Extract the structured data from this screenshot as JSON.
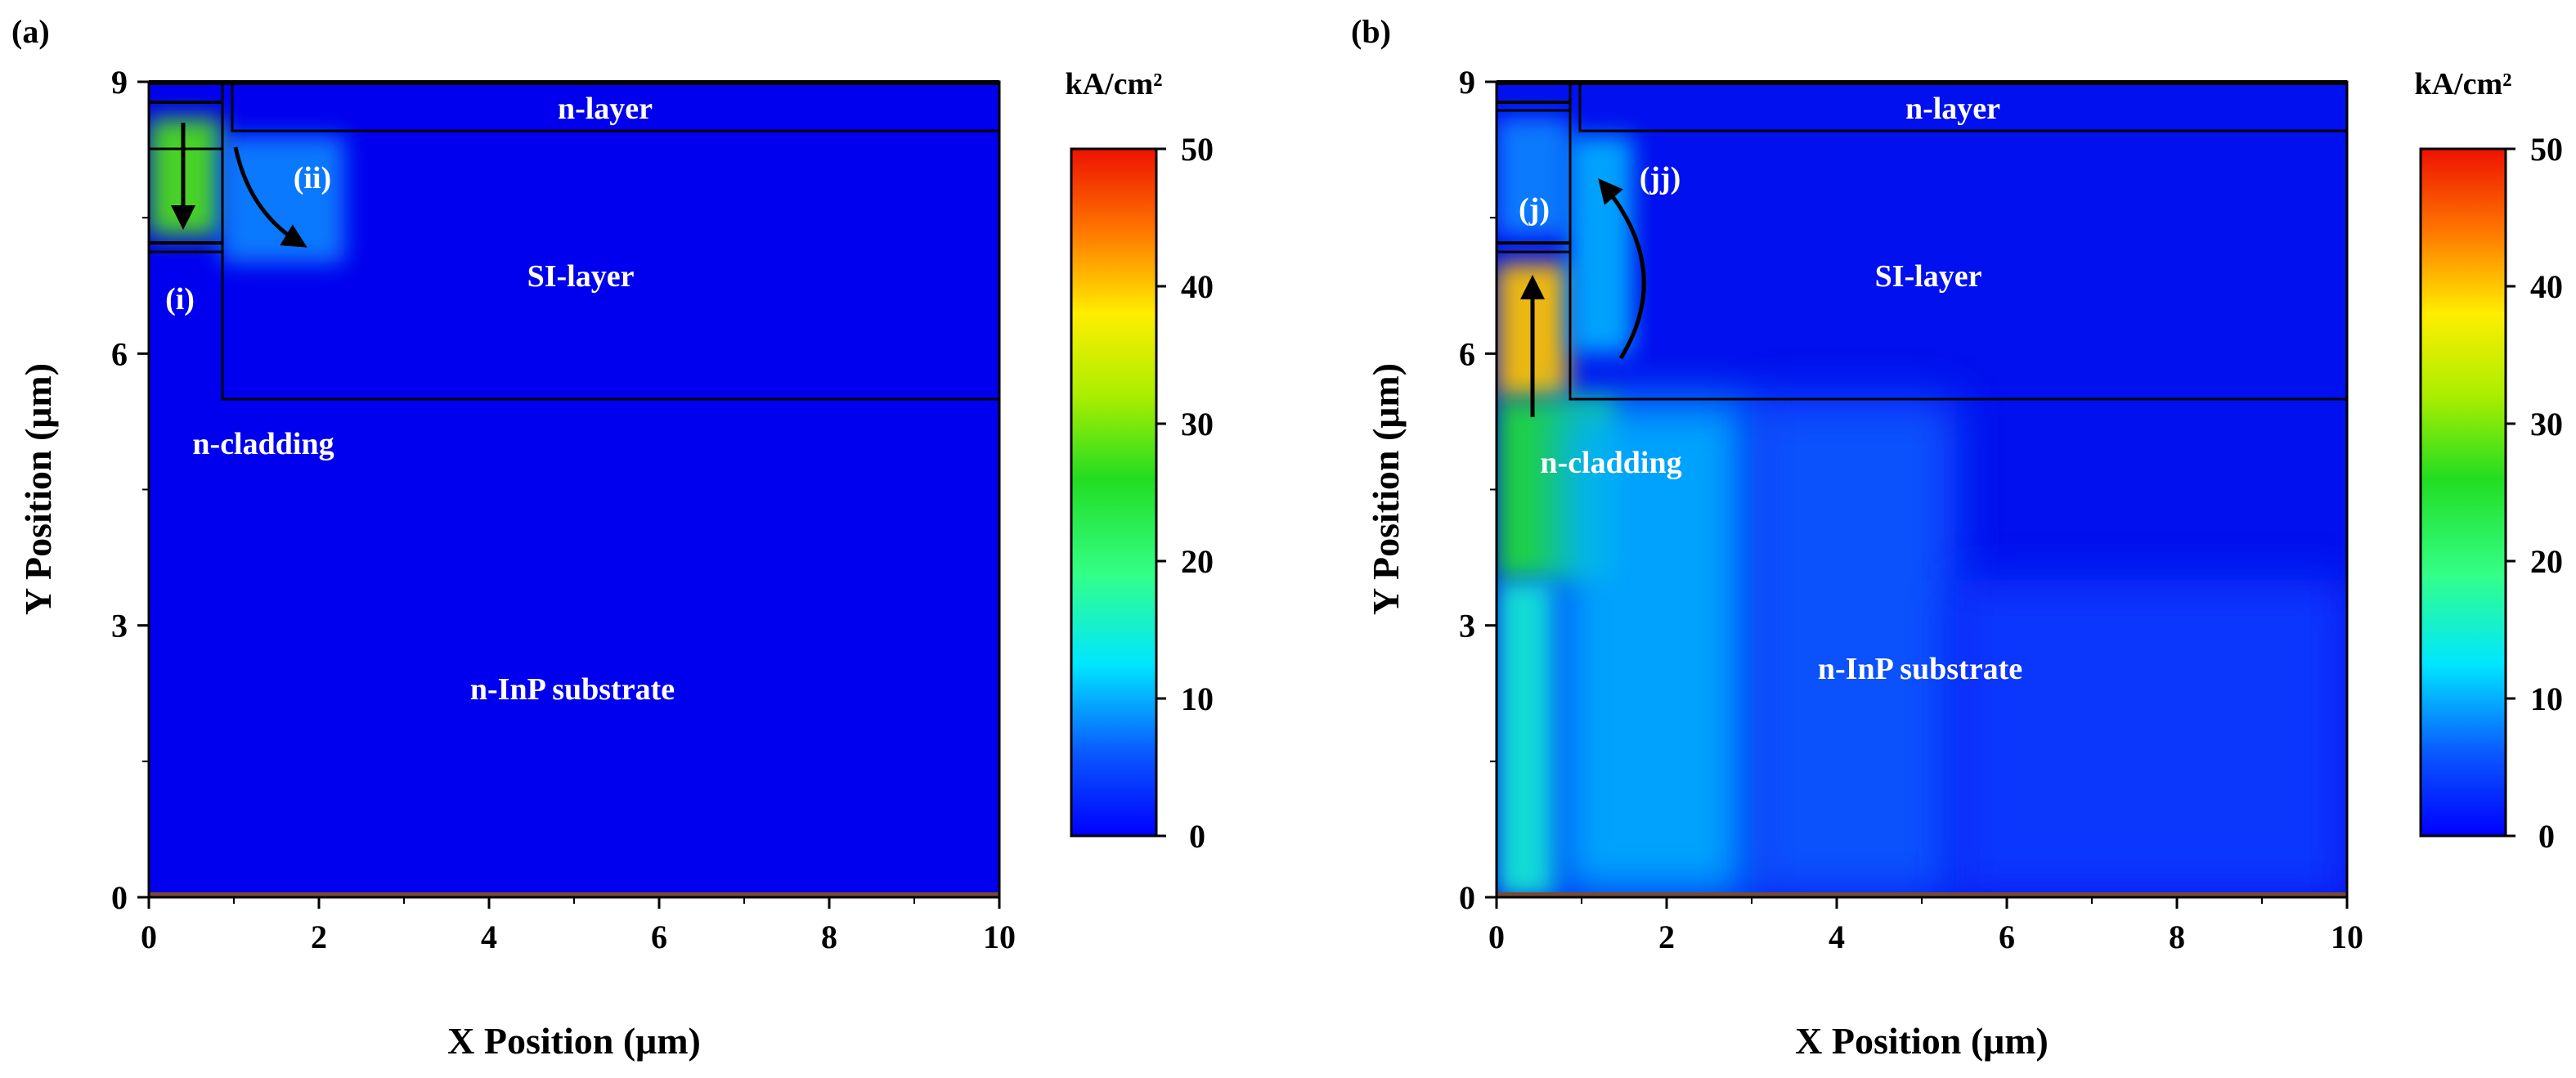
{
  "chart_data": [
    {
      "type": "heatmap",
      "panel_label": "(a)",
      "xlabel": "X Position (μm)",
      "ylabel": "Y Position (μm)",
      "xlim": [
        0,
        10
      ],
      "ylim": [
        0,
        9
      ],
      "xticks": [
        "0",
        "2",
        "4",
        "6",
        "8",
        "10"
      ],
      "yticks": [
        "0",
        "3",
        "6",
        "9"
      ],
      "colorbar": {
        "title": "kA/cm²",
        "min": 0,
        "max": 50,
        "ticks": [
          "0",
          "10",
          "20",
          "30",
          "40",
          "50"
        ]
      },
      "regions": [
        {
          "label": "n-layer",
          "x": [
            0.95,
            10
          ],
          "y": [
            8.45,
            8.95
          ],
          "current_density": 0
        },
        {
          "label": "SI-layer",
          "x": [
            0.85,
            10
          ],
          "y": [
            5.5,
            8.45
          ],
          "current_density": 1
        },
        {
          "label": "n-cladding",
          "x": [
            0,
            0.85
          ],
          "y": [
            0,
            7.0
          ],
          "current_density": 1
        },
        {
          "label": "n-InP substrate",
          "x": [
            0,
            10
          ],
          "y": [
            0,
            5.5
          ],
          "current_density": 1
        }
      ],
      "hotspots": [
        {
          "x": [
            0,
            0.85
          ],
          "y": [
            7.3,
            8.6
          ],
          "current_density": 28
        },
        {
          "x": [
            0.85,
            2.3
          ],
          "y": [
            7.0,
            8.4
          ],
          "current_density": 8
        }
      ],
      "annotations": [
        {
          "text": "(i)",
          "x": 0.35,
          "y": 6.7
        },
        {
          "text": "(ii)",
          "x": 1.95,
          "y": 8.2
        }
      ]
    },
    {
      "type": "heatmap",
      "panel_label": "(b)",
      "xlabel": "X Position (μm)",
      "ylabel": "Y Position (μm)",
      "xlim": [
        0,
        10
      ],
      "ylim": [
        0,
        9
      ],
      "xticks": [
        "0",
        "2",
        "4",
        "6",
        "8",
        "10"
      ],
      "yticks": [
        "0",
        "3",
        "6",
        "9"
      ],
      "colorbar": {
        "title": "kA/cm²",
        "min": 0,
        "max": 50,
        "ticks": [
          "0",
          "10",
          "20",
          "30",
          "40",
          "50"
        ]
      },
      "regions": [
        {
          "label": "n-layer",
          "x": [
            0.95,
            10
          ],
          "y": [
            8.45,
            8.95
          ],
          "current_density": 0
        },
        {
          "label": "SI-layer",
          "x": [
            0.85,
            10
          ],
          "y": [
            5.5,
            8.45
          ],
          "current_density": 2
        },
        {
          "label": "n-cladding",
          "x": [
            0,
            0.85
          ],
          "y": [
            4.8,
            7.0
          ],
          "current_density": 38
        },
        {
          "label": "n-InP substrate",
          "x": [
            0,
            10
          ],
          "y": [
            0,
            5.5
          ],
          "current_density": 6
        }
      ],
      "hotspots": [
        {
          "x": [
            0,
            0.85
          ],
          "y": [
            5.5,
            7.0
          ],
          "current_density": 40
        },
        {
          "x": [
            0,
            1.4
          ],
          "y": [
            3.5,
            5.5
          ],
          "current_density": 25
        },
        {
          "x": [
            0,
            0.7
          ],
          "y": [
            0,
            3.5
          ],
          "current_density": 15
        },
        {
          "x": [
            0.7,
            3.0
          ],
          "y": [
            0,
            5.5
          ],
          "current_density": 10
        },
        {
          "x": [
            3.0,
            5.4
          ],
          "y": [
            0,
            5.5
          ],
          "current_density": 6
        },
        {
          "x": [
            5.4,
            10
          ],
          "y": [
            0,
            3.5
          ],
          "current_density": 4
        },
        {
          "x": [
            0,
            0.85
          ],
          "y": [
            7.3,
            8.6
          ],
          "current_density": 8
        },
        {
          "x": [
            0.85,
            1.6
          ],
          "y": [
            6.0,
            8.4
          ],
          "current_density": 10
        }
      ],
      "annotations": [
        {
          "text": "(j)",
          "x": 0.45,
          "y": 7.45
        },
        {
          "text": "(jj)",
          "x": 1.55,
          "y": 8.2
        }
      ]
    }
  ]
}
